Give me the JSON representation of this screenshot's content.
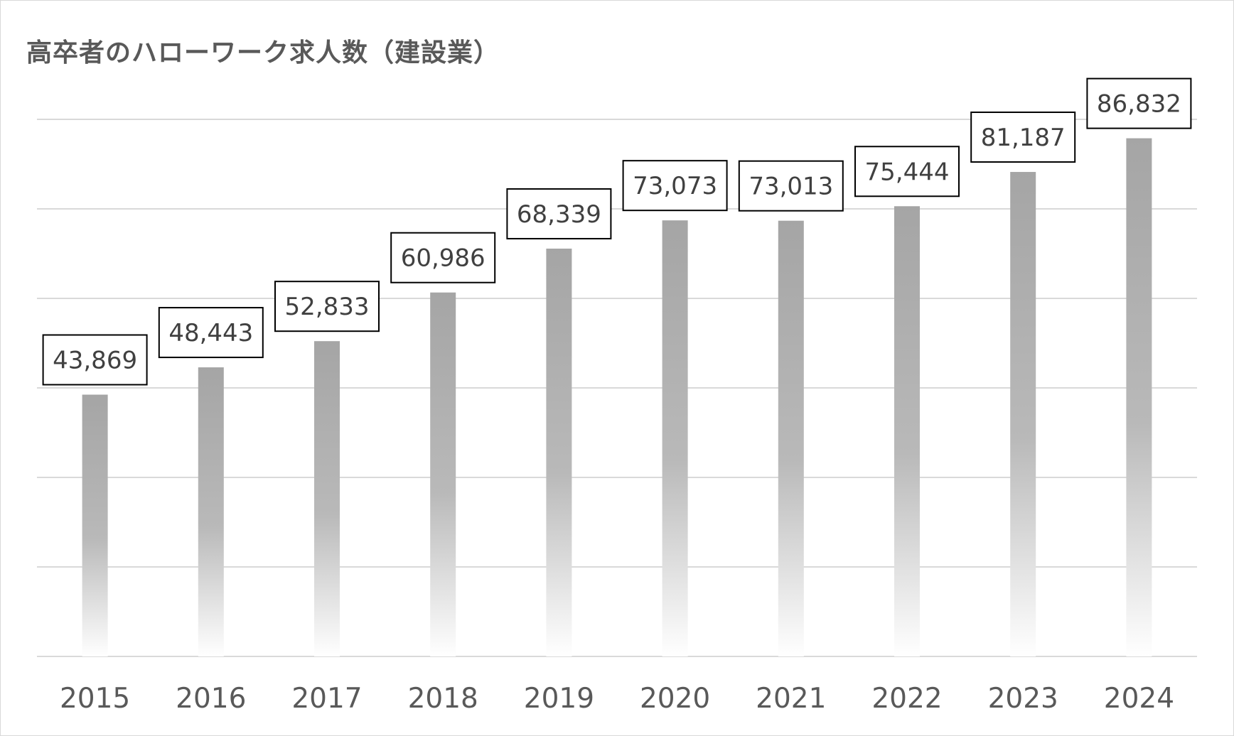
{
  "colors": {
    "bar_top": "#a5a5a5",
    "bar_bottom": "#ffffff",
    "grid": "#d9d9d9",
    "text": "#595959",
    "label_border": "#000000"
  },
  "chart_data": {
    "type": "bar",
    "title": "高卒者のハローワーク求人数（建設業）",
    "xlabel": "",
    "ylabel": "",
    "categories": [
      "2015",
      "2016",
      "2017",
      "2018",
      "2019",
      "2020",
      "2021",
      "2022",
      "2023",
      "2024"
    ],
    "values": [
      43869,
      48443,
      52833,
      60986,
      68339,
      73073,
      73013,
      75444,
      81187,
      86832
    ],
    "value_labels": [
      "43,869",
      "48,443",
      "52,833",
      "60,986",
      "68,339",
      "73,073",
      "73,013",
      "75,444",
      "81,187",
      "86,832"
    ],
    "ylim": [
      0,
      90000
    ],
    "ytick_step": 15000,
    "y_axis_labels_shown": false,
    "grid": true,
    "legend": "none"
  }
}
